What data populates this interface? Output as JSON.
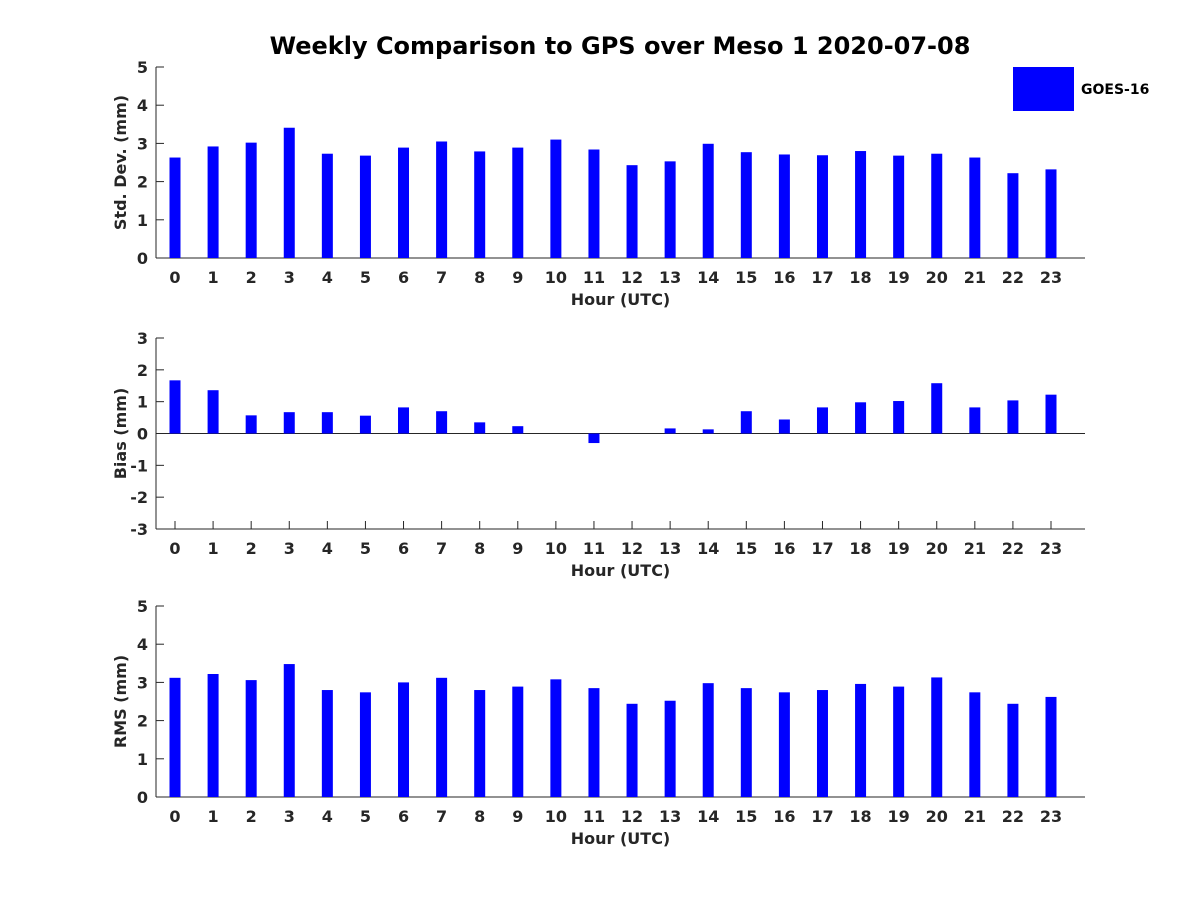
{
  "chart_data": {
    "title": "Weekly Comparison to GPS over Meso 1 2020-07-08",
    "type": "bar",
    "legend": {
      "label": "GOES-16",
      "color": "#0000ff",
      "position": "top-right"
    },
    "bar_color": "#0000ff",
    "categories": [
      "0",
      "1",
      "2",
      "3",
      "4",
      "5",
      "6",
      "7",
      "8",
      "9",
      "10",
      "11",
      "12",
      "13",
      "14",
      "15",
      "16",
      "17",
      "18",
      "19",
      "20",
      "21",
      "22",
      "23"
    ],
    "panels": [
      {
        "id": "std",
        "xlabel": "Hour (UTC)",
        "ylabel": "Std. Dev. (mm)",
        "ylim": [
          0,
          5
        ],
        "yticks": [
          "0",
          "1",
          "2",
          "3",
          "4",
          "5"
        ],
        "values": [
          2.63,
          2.92,
          3.02,
          3.41,
          2.73,
          2.68,
          2.89,
          3.05,
          2.79,
          2.89,
          3.1,
          2.84,
          2.43,
          2.53,
          2.99,
          2.77,
          2.71,
          2.69,
          2.8,
          2.68,
          2.73,
          2.63,
          2.22,
          2.32
        ]
      },
      {
        "id": "bias",
        "xlabel": "Hour (UTC)",
        "ylabel": "Bias (mm)",
        "ylim": [
          -3,
          3
        ],
        "yticks": [
          "-3",
          "-2",
          "-1",
          "0",
          "1",
          "2",
          "3"
        ],
        "values": [
          1.67,
          1.36,
          0.57,
          0.67,
          0.67,
          0.56,
          0.82,
          0.7,
          0.35,
          0.23,
          0.0,
          -0.3,
          0.0,
          0.16,
          0.13,
          0.7,
          0.44,
          0.82,
          0.98,
          1.02,
          1.58,
          0.82,
          1.04,
          1.22
        ]
      },
      {
        "id": "rms",
        "xlabel": "Hour (UTC)",
        "ylabel": "RMS (mm)",
        "ylim": [
          0,
          5
        ],
        "yticks": [
          "0",
          "1",
          "2",
          "3",
          "4",
          "5"
        ],
        "values": [
          3.12,
          3.22,
          3.06,
          3.48,
          2.8,
          2.74,
          3.0,
          3.12,
          2.8,
          2.89,
          3.08,
          2.85,
          2.44,
          2.52,
          2.98,
          2.85,
          2.74,
          2.8,
          2.96,
          2.89,
          3.13,
          2.74,
          2.44,
          2.62
        ]
      }
    ]
  }
}
